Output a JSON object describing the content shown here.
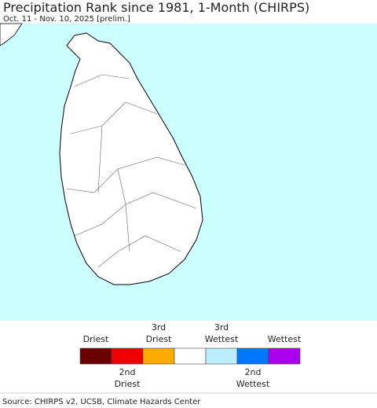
{
  "title": "Precipitation Rank since 1981, 1-Month (CHIRPS)",
  "subtitle": "Oct. 11 - Nov. 10, 2025 [prelim.]",
  "legend": {
    "items": [
      {
        "label": [
          "Driest"
        ],
        "color": "#6b0000"
      },
      {
        "label": [
          "2nd",
          "Driest"
        ],
        "color": "#ee0000"
      },
      {
        "label": [
          "3rd",
          "Driest"
        ],
        "color": "#ffaa00"
      },
      {
        "label": [],
        "color": "#ffffff"
      },
      {
        "label": [
          "3rd",
          "Wettest"
        ],
        "color": "#bbeeff"
      },
      {
        "label": [
          "2nd",
          "Wettest"
        ],
        "color": "#0077ff"
      },
      {
        "label": [
          "Wettest"
        ],
        "color": "#aa00ee"
      }
    ]
  },
  "source": "Source: CHIRPS v2, UCSB, Climate Hazards Center"
}
